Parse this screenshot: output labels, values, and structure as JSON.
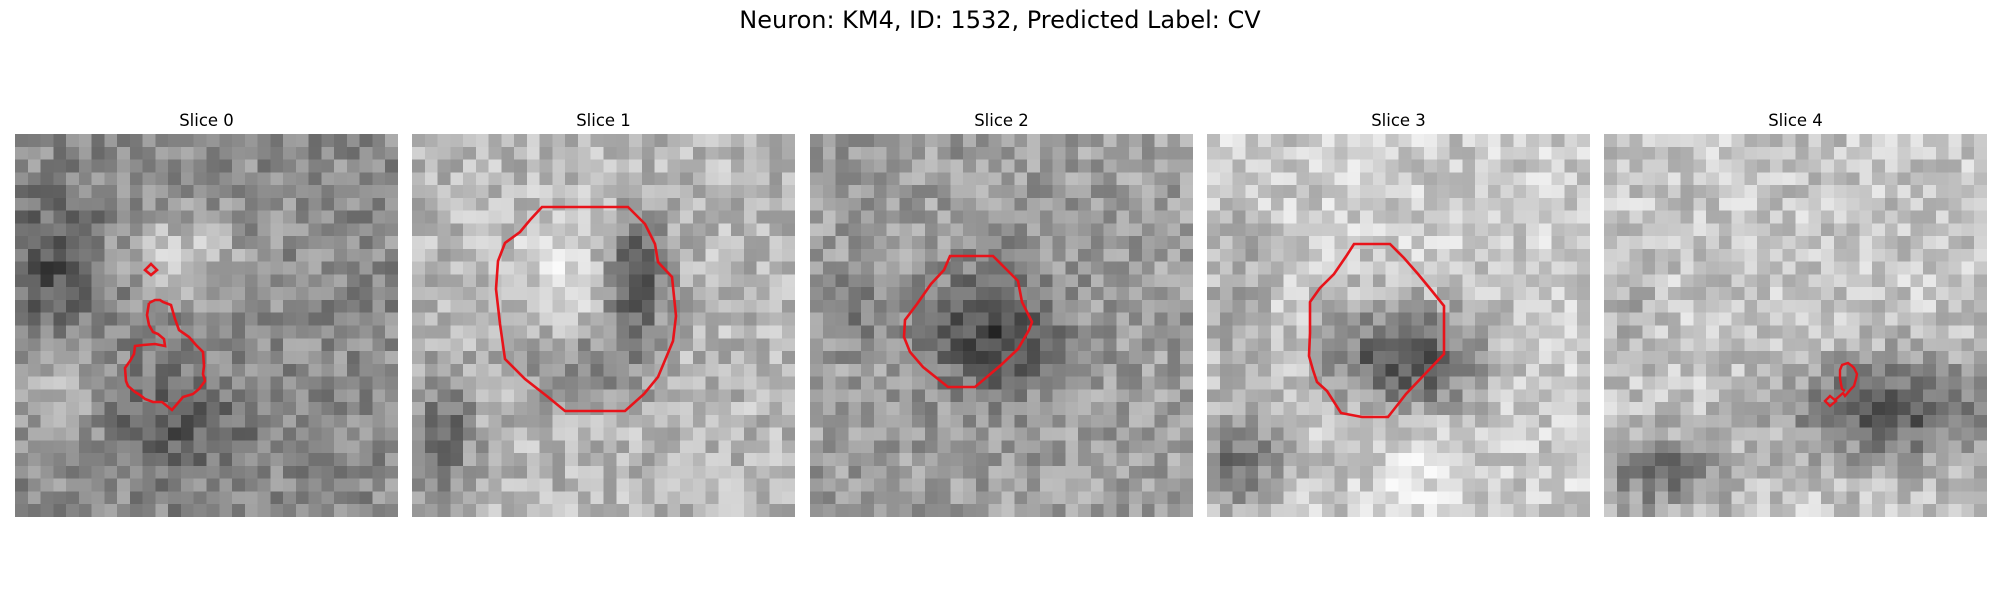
{
  "figure": {
    "title": "Neuron: KM4, ID: 1532, Predicted Label: CV",
    "contour_color": "#e8131a",
    "colormap": "grayscale",
    "slices": [
      {
        "title": "Slice 0",
        "seed": 11
      },
      {
        "title": "Slice 1",
        "seed": 23
      },
      {
        "title": "Slice 2",
        "seed": 37
      },
      {
        "title": "Slice 3",
        "seed": 41
      },
      {
        "title": "Slice 4",
        "seed": 59
      }
    ]
  }
}
